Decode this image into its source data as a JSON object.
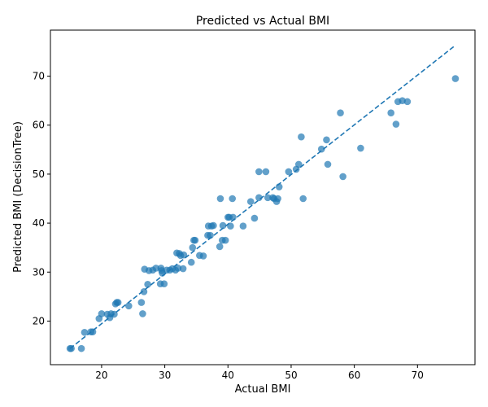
{
  "chart_data": {
    "type": "scatter",
    "title": "Predicted vs Actual BMI",
    "xlabel": "Actual BMI",
    "ylabel": "Predicted BMI (DecisionTree)",
    "xlim": [
      11.9,
      79.1
    ],
    "ylim": [
      11.1,
      79.4
    ],
    "x_ticks": [
      20,
      30,
      40,
      50,
      60,
      70
    ],
    "y_ticks": [
      20,
      30,
      40,
      50,
      60,
      70
    ],
    "grid": false,
    "point_color": "#1f77b4",
    "line_color": "#1f77b4",
    "reference_line": {
      "style": "dashed",
      "x": [
        15,
        76
      ],
      "y": [
        14.4,
        76.3
      ]
    },
    "points": [
      [
        15,
        14.4
      ],
      [
        15.2,
        14.4
      ],
      [
        16.8,
        14.4
      ],
      [
        17.3,
        17.7
      ],
      [
        18.3,
        17.8
      ],
      [
        18.6,
        17.8
      ],
      [
        19.6,
        20.5
      ],
      [
        20,
        21.5
      ],
      [
        20.9,
        21.4
      ],
      [
        21.3,
        20.7
      ],
      [
        21.5,
        21.5
      ],
      [
        22,
        21.4
      ],
      [
        22.2,
        23.5
      ],
      [
        22.4,
        23.8
      ],
      [
        22.6,
        23.8
      ],
      [
        24.3,
        23.1
      ],
      [
        26.3,
        23.8
      ],
      [
        26.5,
        21.5
      ],
      [
        26.7,
        26
      ],
      [
        26.8,
        30.6
      ],
      [
        27.3,
        27.5
      ],
      [
        27.5,
        30.3
      ],
      [
        28.1,
        30.4
      ],
      [
        28.6,
        30.8
      ],
      [
        29.3,
        27.6
      ],
      [
        29.4,
        30.8
      ],
      [
        29.5,
        30.3
      ],
      [
        29.6,
        29.8
      ],
      [
        29.9,
        27.6
      ],
      [
        30.3,
        30.4
      ],
      [
        30.8,
        30.4
      ],
      [
        31.2,
        30.7
      ],
      [
        31.7,
        30.4
      ],
      [
        31.9,
        33.9
      ],
      [
        32.1,
        30.8
      ],
      [
        32.3,
        33.8
      ],
      [
        32.5,
        33.4
      ],
      [
        32.9,
        30.7
      ],
      [
        33,
        33.5
      ],
      [
        34.2,
        32
      ],
      [
        34.4,
        35
      ],
      [
        34.6,
        36.5
      ],
      [
        34.8,
        36.5
      ],
      [
        35.5,
        33.4
      ],
      [
        36.1,
        33.3
      ],
      [
        36.8,
        37.5
      ],
      [
        36.9,
        39.4
      ],
      [
        37.2,
        37.5
      ],
      [
        37.4,
        39.4
      ],
      [
        37.7,
        39.5
      ],
      [
        38.7,
        35.2
      ],
      [
        38.8,
        45
      ],
      [
        39.1,
        36.5
      ],
      [
        39.2,
        39.5
      ],
      [
        39.6,
        36.5
      ],
      [
        40,
        41.2
      ],
      [
        40.2,
        41.2
      ],
      [
        40.4,
        39.4
      ],
      [
        40.7,
        45
      ],
      [
        40.8,
        41.2
      ],
      [
        42.4,
        39.4
      ],
      [
        43.6,
        44.4
      ],
      [
        44.2,
        41
      ],
      [
        44.9,
        50.5
      ],
      [
        44.9,
        45.2
      ],
      [
        46,
        50.5
      ],
      [
        46.3,
        45.2
      ],
      [
        47.1,
        45.2
      ],
      [
        47.3,
        45
      ],
      [
        47.7,
        44.4
      ],
      [
        47.9,
        45
      ],
      [
        48.1,
        47.4
      ],
      [
        49.6,
        50.5
      ],
      [
        50.8,
        51
      ],
      [
        51.2,
        52
      ],
      [
        51.6,
        57.6
      ],
      [
        51.9,
        45
      ],
      [
        54.8,
        55.1
      ],
      [
        55.6,
        57
      ],
      [
        55.8,
        52
      ],
      [
        57.8,
        62.5
      ],
      [
        58.2,
        49.5
      ],
      [
        61,
        55.3
      ],
      [
        65.8,
        62.5
      ],
      [
        66.6,
        60.2
      ],
      [
        66.9,
        64.8
      ],
      [
        67.6,
        65
      ],
      [
        68.4,
        64.8
      ],
      [
        76,
        69.5
      ]
    ]
  }
}
